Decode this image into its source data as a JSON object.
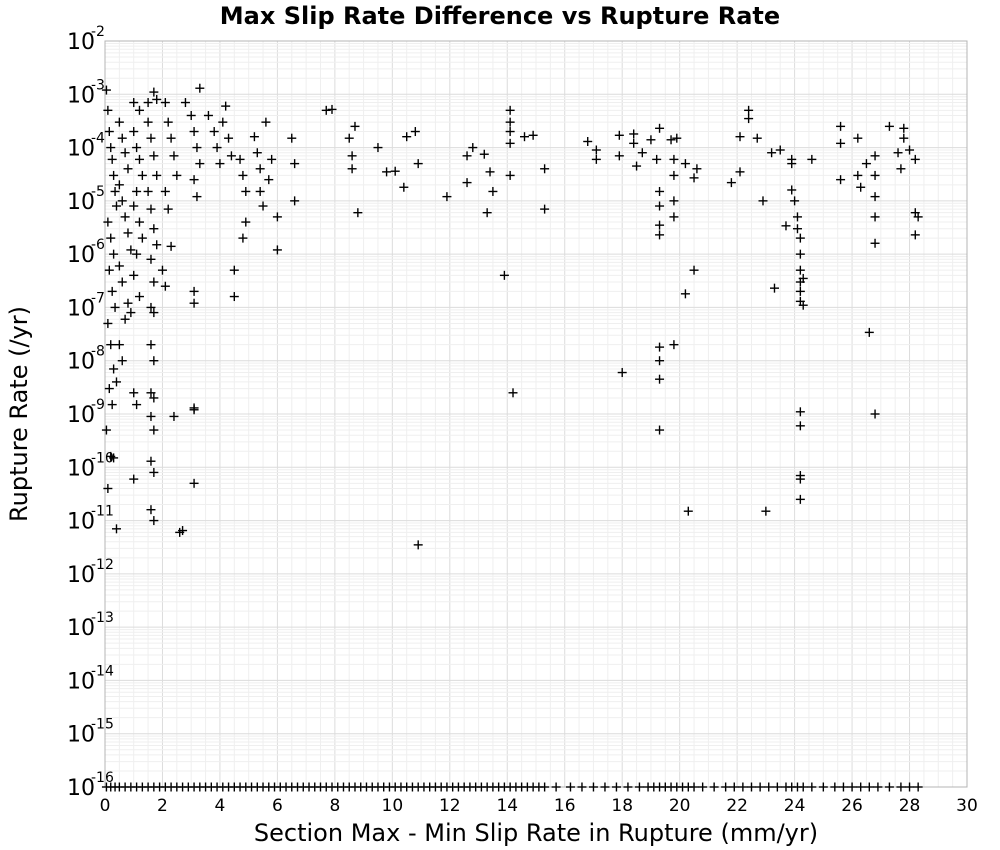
{
  "chart_data": {
    "type": "scatter",
    "title": "Max Slip Rate Difference vs Rupture Rate",
    "xlabel": "Section Max - Min Slip Rate in Rupture (mm/yr)",
    "ylabel": "Rupture Rate (/yr)",
    "xlim": [
      0,
      30
    ],
    "ylim": [
      1e-16,
      0.01
    ],
    "y_scale": "log",
    "grid": true,
    "marker": "plus",
    "marker_color": "#000000",
    "x_ticks": [
      {
        "value": 0,
        "label": "0"
      },
      {
        "value": 2,
        "label": "2"
      },
      {
        "value": 4,
        "label": "4"
      },
      {
        "value": 6,
        "label": "6"
      },
      {
        "value": 8,
        "label": "8"
      },
      {
        "value": 10,
        "label": "10"
      },
      {
        "value": 12,
        "label": "12"
      },
      {
        "value": 14,
        "label": "14"
      },
      {
        "value": 16,
        "label": "16"
      },
      {
        "value": 18,
        "label": "18"
      },
      {
        "value": 20,
        "label": "20"
      },
      {
        "value": 22,
        "label": "22"
      },
      {
        "value": 24,
        "label": "24"
      },
      {
        "value": 26,
        "label": "26"
      },
      {
        "value": 28,
        "label": "28"
      },
      {
        "value": 30,
        "label": "30"
      }
    ],
    "y_ticks": [
      {
        "value": 0.01,
        "base": "10",
        "exp": "-2"
      },
      {
        "value": 0.001,
        "base": "10",
        "exp": "-3"
      },
      {
        "value": 0.0001,
        "base": "10",
        "exp": "-4"
      },
      {
        "value": 1e-05,
        "base": "10",
        "exp": "-5"
      },
      {
        "value": 1e-06,
        "base": "10",
        "exp": "-6"
      },
      {
        "value": 1e-07,
        "base": "10",
        "exp": "-7"
      },
      {
        "value": 1e-08,
        "base": "10",
        "exp": "-8"
      },
      {
        "value": 1e-09,
        "base": "10",
        "exp": "-9"
      },
      {
        "value": 1e-10,
        "base": "10",
        "exp": "-10"
      },
      {
        "value": 1e-11,
        "base": "10",
        "exp": "-11"
      },
      {
        "value": 1e-12,
        "base": "10",
        "exp": "-12"
      },
      {
        "value": 1e-13,
        "base": "10",
        "exp": "-13"
      },
      {
        "value": 1e-14,
        "base": "10",
        "exp": "-14"
      },
      {
        "value": 1e-15,
        "base": "10",
        "exp": "-15"
      },
      {
        "value": 1e-16,
        "base": "10",
        "exp": "-16"
      }
    ],
    "points": [
      [
        0.05,
        0.0012
      ],
      [
        0.1,
        0.0005
      ],
      [
        0.15,
        0.0002
      ],
      [
        0.2,
        0.0001
      ],
      [
        0.25,
        6e-05
      ],
      [
        0.3,
        3e-05
      ],
      [
        0.35,
        1.5e-05
      ],
      [
        0.4,
        8e-06
      ],
      [
        0.1,
        4e-06
      ],
      [
        0.2,
        2e-06
      ],
      [
        0.3,
        1e-06
      ],
      [
        0.15,
        5e-07
      ],
      [
        0.25,
        2e-07
      ],
      [
        0.35,
        1e-07
      ],
      [
        0.1,
        5e-08
      ],
      [
        0.2,
        2e-08
      ],
      [
        0.3,
        7e-09
      ],
      [
        0.15,
        3e-09
      ],
      [
        0.25,
        1.5e-09
      ],
      [
        0.05,
        5e-10
      ],
      [
        0.2,
        1.6e-10
      ],
      [
        0.3,
        1.5e-10
      ],
      [
        0.1,
        4e-11
      ],
      [
        0.4,
        7e-12
      ],
      [
        0.5,
        0.0003
      ],
      [
        0.6,
        0.00015
      ],
      [
        0.7,
        8e-05
      ],
      [
        0.8,
        4e-05
      ],
      [
        0.5,
        2e-05
      ],
      [
        0.6,
        1e-05
      ],
      [
        0.7,
        5e-06
      ],
      [
        0.8,
        2.5e-06
      ],
      [
        0.9,
        1.2e-06
      ],
      [
        0.5,
        6e-07
      ],
      [
        0.6,
        3e-07
      ],
      [
        0.8,
        1.2e-07
      ],
      [
        0.7,
        6e-08
      ],
      [
        0.5,
        2e-08
      ],
      [
        0.6,
        1e-08
      ],
      [
        0.4,
        4e-09
      ],
      [
        1.0,
        0.0007
      ],
      [
        1.2,
        0.0005
      ],
      [
        1.0,
        0.0002
      ],
      [
        1.1,
        0.0001
      ],
      [
        1.2,
        6e-05
      ],
      [
        1.3,
        3e-05
      ],
      [
        1.1,
        1.5e-05
      ],
      [
        1.0,
        8e-06
      ],
      [
        1.2,
        4e-06
      ],
      [
        1.3,
        2e-06
      ],
      [
        1.1,
        1e-06
      ],
      [
        1.0,
        4e-07
      ],
      [
        1.2,
        1.6e-07
      ],
      [
        0.9,
        8e-08
      ],
      [
        1.0,
        2.5e-09
      ],
      [
        1.1,
        1.5e-09
      ],
      [
        1.0,
        6e-11
      ],
      [
        1.5,
        0.0007
      ],
      [
        1.7,
        0.0011
      ],
      [
        1.8,
        0.0008
      ],
      [
        1.5,
        0.0003
      ],
      [
        1.6,
        0.00015
      ],
      [
        1.7,
        7e-05
      ],
      [
        1.8,
        3e-05
      ],
      [
        1.5,
        1.5e-05
      ],
      [
        1.6,
        7e-06
      ],
      [
        1.7,
        3e-06
      ],
      [
        1.8,
        1.5e-06
      ],
      [
        1.6,
        8e-07
      ],
      [
        1.7,
        3e-07
      ],
      [
        1.6,
        1e-07
      ],
      [
        1.7,
        8e-08
      ],
      [
        1.6,
        2e-08
      ],
      [
        1.7,
        1e-08
      ],
      [
        1.6,
        2.5e-09
      ],
      [
        1.7,
        2e-09
      ],
      [
        1.6,
        9e-10
      ],
      [
        1.7,
        5e-10
      ],
      [
        1.6,
        1.3e-10
      ],
      [
        1.7,
        8e-11
      ],
      [
        1.6,
        1.6e-11
      ],
      [
        1.7,
        1e-11
      ],
      [
        2.1,
        0.0007
      ],
      [
        2.2,
        0.0003
      ],
      [
        2.3,
        0.00015
      ],
      [
        2.4,
        7e-05
      ],
      [
        2.5,
        3e-05
      ],
      [
        2.1,
        1.5e-05
      ],
      [
        2.2,
        7e-06
      ],
      [
        2.3,
        1.4e-06
      ],
      [
        2.0,
        5e-07
      ],
      [
        2.1,
        2.5e-07
      ],
      [
        2.4,
        9e-10
      ],
      [
        2.6,
        6e-12
      ],
      [
        2.7,
        6.5e-12
      ],
      [
        2.8,
        0.0007
      ],
      [
        3.0,
        0.0004
      ],
      [
        3.1,
        0.0002
      ],
      [
        3.2,
        0.0001
      ],
      [
        3.3,
        5e-05
      ],
      [
        3.1,
        2.5e-05
      ],
      [
        3.2,
        1.2e-05
      ],
      [
        3.3,
        0.0013
      ],
      [
        3.1,
        2e-07
      ],
      [
        3.1,
        1.2e-07
      ],
      [
        3.1,
        1.3e-09
      ],
      [
        3.1,
        1.2e-09
      ],
      [
        3.1,
        5e-11
      ],
      [
        3.6,
        0.0004
      ],
      [
        3.8,
        0.0002
      ],
      [
        3.9,
        0.0001
      ],
      [
        4.0,
        5e-05
      ],
      [
        4.1,
        0.0003
      ],
      [
        4.2,
        0.0006
      ],
      [
        4.3,
        0.00015
      ],
      [
        4.4,
        7e-05
      ],
      [
        4.5,
        5e-07
      ],
      [
        4.5,
        1.6e-07
      ],
      [
        4.7,
        6e-05
      ],
      [
        4.8,
        3e-05
      ],
      [
        4.8,
        2e-06
      ],
      [
        4.9,
        1.5e-05
      ],
      [
        4.9,
        4e-06
      ],
      [
        5.2,
        0.00016
      ],
      [
        5.3,
        8e-05
      ],
      [
        5.4,
        4e-05
      ],
      [
        5.4,
        1.5e-05
      ],
      [
        5.5,
        8e-06
      ],
      [
        5.6,
        0.0003
      ],
      [
        5.7,
        2.5e-05
      ],
      [
        5.8,
        6e-05
      ],
      [
        6.0,
        5e-06
      ],
      [
        6.0,
        1.2e-06
      ],
      [
        6.5,
        0.00015
      ],
      [
        6.6,
        5e-05
      ],
      [
        6.6,
        1e-05
      ],
      [
        7.7,
        0.0005
      ],
      [
        7.9,
        0.00052
      ],
      [
        8.5,
        0.00015
      ],
      [
        8.6,
        7e-05
      ],
      [
        8.6,
        4e-05
      ],
      [
        8.7,
        0.00025
      ],
      [
        8.8,
        6e-06
      ],
      [
        9.5,
        0.0001
      ],
      [
        9.8,
        3.5e-05
      ],
      [
        10.1,
        3.6e-05
      ],
      [
        10.4,
        1.8e-05
      ],
      [
        10.5,
        0.00016
      ],
      [
        10.8,
        0.0002
      ],
      [
        10.9,
        5e-05
      ],
      [
        10.9,
        3.5e-12
      ],
      [
        11.9,
        1.2e-05
      ],
      [
        12.6,
        7e-05
      ],
      [
        12.6,
        2.2e-05
      ],
      [
        12.8,
        0.0001
      ],
      [
        13.2,
        7.5e-05
      ],
      [
        13.3,
        6e-06
      ],
      [
        13.4,
        3.5e-05
      ],
      [
        13.5,
        1.5e-05
      ],
      [
        13.9,
        4e-07
      ],
      [
        14.1,
        0.0005
      ],
      [
        14.1,
        0.0003
      ],
      [
        14.1,
        0.0002
      ],
      [
        14.1,
        0.00012
      ],
      [
        14.1,
        3e-05
      ],
      [
        14.2,
        2.5e-09
      ],
      [
        14.6,
        0.00016
      ],
      [
        14.9,
        0.00017
      ],
      [
        15.3,
        7e-06
      ],
      [
        15.3,
        4e-05
      ],
      [
        16.8,
        0.00013
      ],
      [
        17.1,
        9e-05
      ],
      [
        17.1,
        6e-05
      ],
      [
        17.9,
        0.00017
      ],
      [
        17.9,
        7e-05
      ],
      [
        18.0,
        6e-09
      ],
      [
        18.4,
        0.00018
      ],
      [
        18.4,
        0.00012
      ],
      [
        18.5,
        4.5e-05
      ],
      [
        18.7,
        8e-05
      ],
      [
        19.0,
        0.00014
      ],
      [
        19.2,
        6e-05
      ],
      [
        19.3,
        0.00023
      ],
      [
        19.3,
        1.5e-05
      ],
      [
        19.3,
        8e-06
      ],
      [
        19.3,
        3.5e-06
      ],
      [
        19.3,
        2.3e-06
      ],
      [
        19.3,
        1.8e-08
      ],
      [
        19.3,
        1e-08
      ],
      [
        19.3,
        4.5e-09
      ],
      [
        19.3,
        5e-10
      ],
      [
        19.7,
        0.00014
      ],
      [
        19.8,
        6e-05
      ],
      [
        19.8,
        3e-05
      ],
      [
        19.8,
        1e-05
      ],
      [
        19.8,
        5e-06
      ],
      [
        19.8,
        2e-08
      ],
      [
        19.9,
        0.00015
      ],
      [
        20.2,
        5e-05
      ],
      [
        20.2,
        1.8e-07
      ],
      [
        20.3,
        1.5e-11
      ],
      [
        20.5,
        2.7e-05
      ],
      [
        20.5,
        5e-07
      ],
      [
        20.6,
        4e-05
      ],
      [
        21.8,
        2.2e-05
      ],
      [
        22.1,
        0.00016
      ],
      [
        22.1,
        3.5e-05
      ],
      [
        22.4,
        0.0005
      ],
      [
        22.4,
        0.00035
      ],
      [
        22.7,
        0.00015
      ],
      [
        22.9,
        1e-05
      ],
      [
        23.0,
        1.5e-11
      ],
      [
        23.2,
        8e-05
      ],
      [
        23.3,
        2.3e-07
      ],
      [
        23.5,
        9e-05
      ],
      [
        23.7,
        3.4e-06
      ],
      [
        23.9,
        6e-05
      ],
      [
        23.9,
        1.6e-05
      ],
      [
        23.9,
        5e-05
      ],
      [
        24.0,
        1e-05
      ],
      [
        24.1,
        5e-06
      ],
      [
        24.1,
        3e-06
      ],
      [
        24.2,
        2e-06
      ],
      [
        24.2,
        1e-06
      ],
      [
        24.2,
        5e-07
      ],
      [
        24.2,
        3e-07
      ],
      [
        24.2,
        2e-07
      ],
      [
        24.2,
        1.3e-07
      ],
      [
        24.3,
        3.5e-07
      ],
      [
        24.3,
        1.1e-07
      ],
      [
        24.2,
        1.1e-09
      ],
      [
        24.2,
        6e-10
      ],
      [
        24.2,
        7e-11
      ],
      [
        24.2,
        6e-11
      ],
      [
        24.2,
        2.5e-11
      ],
      [
        24.6,
        6e-05
      ],
      [
        25.6,
        0.00025
      ],
      [
        25.6,
        0.00012
      ],
      [
        25.6,
        2.5e-05
      ],
      [
        26.2,
        0.00015
      ],
      [
        26.2,
        3e-05
      ],
      [
        26.3,
        1.8e-05
      ],
      [
        26.5,
        5e-05
      ],
      [
        26.6,
        3.4e-08
      ],
      [
        26.8,
        7e-05
      ],
      [
        26.8,
        3e-05
      ],
      [
        26.8,
        1.2e-05
      ],
      [
        26.8,
        5e-06
      ],
      [
        26.8,
        1.6e-06
      ],
      [
        26.8,
        1e-09
      ],
      [
        27.3,
        0.00025
      ],
      [
        27.6,
        8e-05
      ],
      [
        27.7,
        4e-05
      ],
      [
        27.8,
        0.00015
      ],
      [
        27.8,
        0.00023
      ],
      [
        28.0,
        9e-05
      ],
      [
        28.2,
        6e-05
      ],
      [
        28.2,
        6e-06
      ],
      [
        28.3,
        5e-06
      ],
      [
        28.2,
        2.3e-06
      ]
    ],
    "floor_x": [
      0.05,
      0.2,
      0.35,
      0.5,
      0.7,
      0.9,
      1.1,
      1.3,
      1.5,
      1.7,
      1.9,
      2.1,
      2.3,
      2.5,
      2.7,
      2.9,
      3.1,
      3.3,
      3.5,
      3.7,
      3.9,
      4.1,
      4.3,
      4.5,
      4.7,
      4.9,
      5.1,
      5.3,
      5.5,
      5.7,
      5.9,
      6.1,
      6.3,
      6.5,
      6.7,
      6.9,
      7.1,
      7.3,
      7.5,
      7.7,
      7.9,
      8.1,
      8.3,
      8.5,
      8.7,
      8.9,
      9.1,
      9.3,
      9.5,
      9.7,
      9.9,
      10.1,
      10.3,
      10.5,
      10.7,
      10.9,
      11.1,
      11.3,
      11.5,
      11.7,
      11.9,
      12.1,
      12.3,
      12.5,
      12.7,
      12.9,
      13.1,
      13.3,
      13.5,
      13.7,
      13.9,
      14.1,
      14.3,
      14.5,
      14.7,
      14.9,
      15.1,
      15.3,
      15.7,
      16.2,
      16.6,
      17.0,
      17.4,
      17.8,
      18.2,
      18.6,
      18.9,
      19.1,
      19.3,
      19.5,
      19.7,
      19.9,
      20.1,
      20.3,
      20.5,
      20.8,
      21.2,
      21.6,
      21.9,
      22.2,
      22.5,
      22.8,
      23.1,
      23.4,
      23.7,
      23.9,
      24.1,
      24.3,
      24.6,
      25.0,
      25.4,
      25.7,
      26.0,
      26.3,
      26.6,
      26.9,
      27.3,
      27.7,
      28.0,
      28.3
    ]
  }
}
